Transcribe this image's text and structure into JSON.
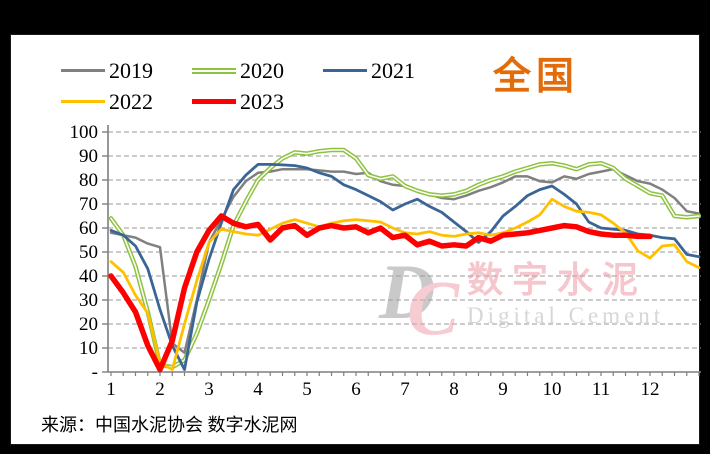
{
  "title": "全国",
  "title_color": "#E36C0A",
  "source_text": "来源：中国水泥协会  数字水泥网",
  "watermark": {
    "monogram_d": "D",
    "monogram_c": "C",
    "cn": "数字水泥",
    "en": "Digital Cement"
  },
  "chart_data": {
    "type": "line",
    "title": "全国",
    "xlabel": "",
    "ylabel": "",
    "ylim": [
      0,
      100
    ],
    "grid": "horizontal-dashed",
    "legend_position": "top-left",
    "x_start": 1,
    "x_step": 0.25,
    "x_end": 13,
    "xtick_labels": [
      "1",
      "2",
      "3",
      "4",
      "5",
      "6",
      "7",
      "8",
      "9",
      "10",
      "11",
      "12"
    ],
    "ytick_labels": [
      "100",
      "90",
      "80",
      "70",
      "60",
      "50",
      "40",
      "30",
      "20",
      "10",
      "-"
    ],
    "series": [
      {
        "name": "2019",
        "color": "#808080",
        "width": 2.5,
        "double": false,
        "values": [
          58,
          57,
          56,
          53.5,
          52,
          12,
          8,
          30,
          54,
          63.5,
          73,
          79.5,
          83,
          83.5,
          84.5,
          84.5,
          84.5,
          84,
          83.5,
          83.5,
          82.5,
          83,
          79.5,
          78,
          77.5,
          75.5,
          74,
          72.5,
          72,
          73.5,
          75.5,
          77,
          79,
          81.5,
          81.5,
          79.5,
          79,
          81.5,
          80.5,
          82.5,
          83.5,
          84.5,
          82,
          79.5,
          78.5,
          76,
          72.5,
          67,
          66
        ]
      },
      {
        "name": "2020",
        "color": "#8EC241",
        "width": 4.5,
        "double": true,
        "values": [
          64,
          57,
          44,
          25,
          3,
          2,
          5,
          16,
          30,
          45,
          61,
          71,
          80,
          85,
          89,
          91.5,
          91,
          92,
          92.5,
          92.5,
          89,
          82,
          80.5,
          81.5,
          77.5,
          75.5,
          74,
          73.5,
          74,
          75.5,
          78,
          80,
          81.5,
          83.5,
          85,
          86.5,
          87,
          86,
          84.5,
          86.5,
          87,
          85,
          80.5,
          77.5,
          74.5,
          73.5,
          65,
          64.5,
          65
        ]
      },
      {
        "name": "2021",
        "color": "#3A6596",
        "width": 2.8,
        "double": false,
        "values": [
          59,
          57,
          52.5,
          43,
          26,
          11,
          1,
          29,
          47,
          62,
          76,
          82,
          86.5,
          86.5,
          86.3,
          86,
          85,
          83,
          81.5,
          78,
          76,
          73.5,
          71,
          67.5,
          70,
          72,
          69,
          66.5,
          62.5,
          58.5,
          54,
          58.5,
          65,
          69,
          73.5,
          76,
          77.5,
          74,
          70,
          62.5,
          60,
          59.5,
          59,
          57.5,
          57,
          56,
          55.5,
          49,
          48
        ]
      },
      {
        "name": "2022",
        "color": "#FFC000",
        "width": 2.8,
        "double": false,
        "values": [
          46,
          41.5,
          32,
          24.5,
          4,
          1,
          20,
          38,
          54,
          59.5,
          58.5,
          57.5,
          57,
          59.5,
          62,
          63.5,
          62,
          60.5,
          62,
          63,
          63.5,
          63,
          62.5,
          60,
          58,
          57.5,
          58.5,
          57,
          56.5,
          57.5,
          58,
          57,
          58,
          60,
          62.5,
          65.5,
          72,
          69,
          67,
          66.5,
          65.5,
          62,
          58,
          50.5,
          47.5,
          52.5,
          53,
          46,
          43.5
        ]
      },
      {
        "name": "2023",
        "color": "#FF0000",
        "width": 5.5,
        "double": false,
        "values": [
          40,
          33,
          25,
          11,
          1,
          13,
          35,
          50,
          59,
          65,
          62,
          60.5,
          61.5,
          55,
          60,
          61,
          57,
          60,
          61,
          60,
          60.5,
          58,
          60,
          56,
          57,
          53,
          54.5,
          52.5,
          53,
          52.5,
          56,
          54.5,
          57,
          57.5,
          58,
          59,
          60,
          61,
          60.5,
          58.5,
          57.5,
          57,
          57,
          56.5,
          56.5
        ]
      }
    ]
  }
}
